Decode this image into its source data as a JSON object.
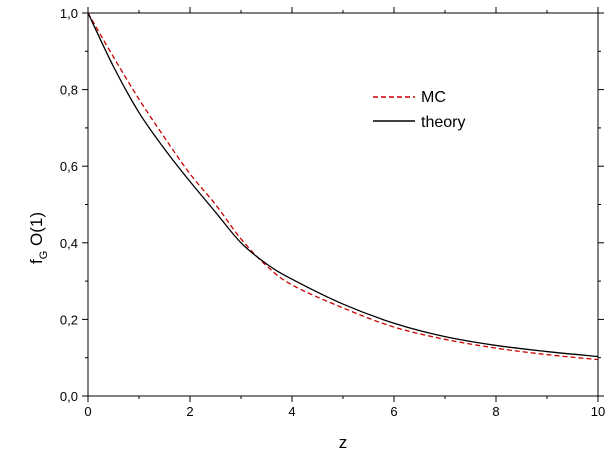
{
  "chart_data": {
    "type": "line",
    "title": "",
    "xlabel": "z",
    "ylabel": {
      "base": "f",
      "subscript": "G",
      "rest": " O(1)"
    },
    "xlim": [
      0,
      10
    ],
    "ylim": [
      0,
      1.0
    ],
    "x_ticks": [
      0,
      2,
      4,
      6,
      8,
      10
    ],
    "x_tick_labels": [
      "0",
      "2",
      "4",
      "6",
      "8",
      "10"
    ],
    "y_ticks": [
      0,
      0.2,
      0.4,
      0.6,
      0.8,
      1.0
    ],
    "y_tick_labels": [
      "0,0",
      "0,2",
      "0,4",
      "0,6",
      "0,8",
      "1,0"
    ],
    "grid": false,
    "legend_position": "upper-right",
    "series": [
      {
        "name": "MC",
        "color": "#cc0000",
        "style": "dashed",
        "x": [
          0,
          0.5,
          1,
          1.5,
          2,
          2.5,
          3,
          3.5,
          4,
          5,
          6,
          7,
          8,
          9,
          10
        ],
        "y": [
          1.0,
          0.885,
          0.775,
          0.675,
          0.58,
          0.5,
          0.41,
          0.34,
          0.29,
          0.23,
          0.18,
          0.148,
          0.125,
          0.108,
          0.095
        ]
      },
      {
        "name": "theory",
        "color": "#000000",
        "style": "solid",
        "x": [
          0,
          0.5,
          1,
          1.5,
          2,
          2.5,
          3,
          3.5,
          4,
          5,
          6,
          7,
          8,
          9,
          10
        ],
        "y": [
          1.0,
          0.86,
          0.74,
          0.645,
          0.56,
          0.48,
          0.4,
          0.345,
          0.305,
          0.24,
          0.19,
          0.155,
          0.132,
          0.116,
          0.103
        ]
      }
    ]
  }
}
